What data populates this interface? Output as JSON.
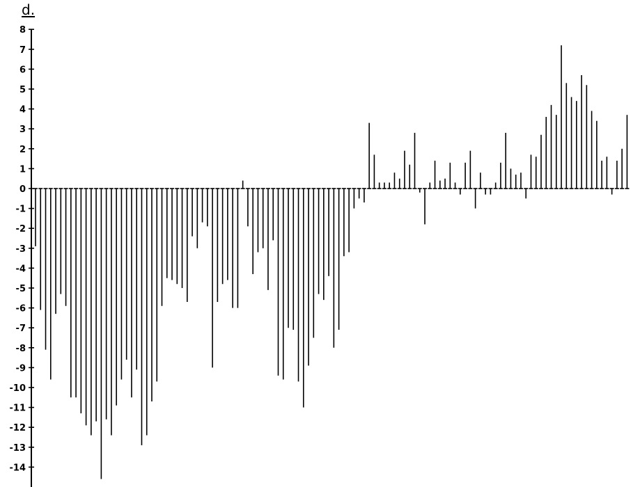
{
  "panel_label": "d.",
  "colors": {
    "ink": "#000000",
    "background": "#ffffff"
  },
  "chart_data": {
    "type": "bar",
    "title": "",
    "xlabel": "",
    "ylabel": "",
    "ylim": [
      -14.6,
      8
    ],
    "grid": false,
    "legend": "none",
    "y_ticks": [
      8,
      7,
      6,
      5,
      4,
      3,
      2,
      1,
      0,
      -1,
      -2,
      -3,
      -4,
      -5,
      -6,
      -7,
      -8,
      -9,
      -10,
      -11,
      -12,
      -13,
      -14
    ],
    "y_tick_labels": [
      "8",
      "7",
      "6",
      "5",
      "4",
      "3",
      "2",
      "1",
      "0",
      "-1",
      "-2",
      "-3",
      "-4",
      "-5",
      "-6",
      "-7",
      "-8",
      "-9",
      "-10",
      "-11",
      "-12",
      "-13",
      "-14"
    ],
    "values": [
      -2.9,
      -6.1,
      -8.1,
      -9.6,
      -6.3,
      -5.3,
      -5.9,
      -10.5,
      -10.5,
      -11.3,
      -11.9,
      -12.4,
      -11.7,
      -14.6,
      -11.6,
      -12.4,
      -10.9,
      -9.6,
      -8.6,
      -10.5,
      -9.1,
      -12.9,
      -12.4,
      -10.7,
      -9.7,
      -5.9,
      -4.5,
      -4.6,
      -4.8,
      -5.0,
      -5.7,
      -2.4,
      -3.0,
      -1.7,
      -1.9,
      -9.0,
      -5.7,
      -4.8,
      -4.6,
      -6.0,
      -6.0,
      0.4,
      -1.9,
      -4.3,
      -3.2,
      -3.0,
      -5.1,
      -2.6,
      -9.4,
      -9.6,
      -7.0,
      -7.1,
      -9.7,
      -11.0,
      -8.9,
      -7.5,
      -5.3,
      -5.6,
      -4.4,
      -8.0,
      -7.1,
      -3.4,
      -3.2,
      -1.0,
      -0.5,
      -0.7,
      3.3,
      1.7,
      0.3,
      0.3,
      0.3,
      0.8,
      0.5,
      1.9,
      1.2,
      2.8,
      -0.2,
      -1.8,
      0.3,
      1.4,
      0.4,
      0.5,
      1.3,
      0.3,
      -0.3,
      1.3,
      1.9,
      -1.0,
      0.8,
      -0.3,
      -0.3,
      0.3,
      1.3,
      2.8,
      1.0,
      0.7,
      0.8,
      -0.5,
      1.7,
      1.6,
      2.7,
      3.6,
      4.2,
      3.7,
      7.2,
      5.3,
      4.6,
      4.4,
      5.7,
      5.2,
      3.9,
      3.4,
      1.4,
      1.6,
      -0.3,
      1.4,
      2.0,
      3.7
    ]
  }
}
